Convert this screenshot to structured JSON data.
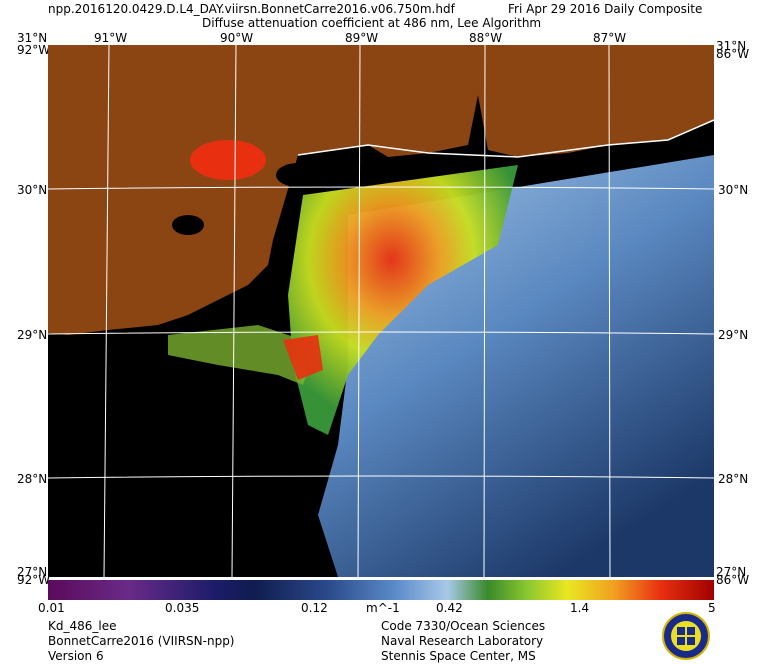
{
  "header": {
    "filename": "npp.2016120.0429.D.L4_DAY.viirsn.BonnetCarre2016.v06.750m.hdf",
    "date": "Fri Apr 29 2016 Daily Composite",
    "product": "Diffuse attenuation coefficient at 486 nm, Lee Algorithm"
  },
  "longitude_labels": [
    "91°W",
    "90°W",
    "89°W",
    "88°W",
    "87°W"
  ],
  "latitude_labels": [
    "31°N",
    "30°N",
    "29°N",
    "28°N"
  ],
  "corner_labels": {
    "top_left_lat": "31°N",
    "top_left_lon": "92°W",
    "top_right_lat": "31°N",
    "top_right_lon": "86°W",
    "bottom_left_lat": "27°N",
    "bottom_left_lon": "92°W",
    "bottom_right_lat": "27°N",
    "bottom_right_lon": "86°W"
  },
  "colorbar": {
    "ticks": [
      "0.01",
      "0.035",
      "0.12",
      "0.42",
      "1.4",
      "5"
    ],
    "unit": "m^-1"
  },
  "footer_left": [
    "Kd_486_lee",
    "BonnetCarre2016 (VIIRSN-npp)",
    "Version 6"
  ],
  "footer_right": [
    "Code 7330/Ocean Sciences",
    "Naval Research Laboratory",
    "Stennis Space Center, MS"
  ],
  "colors": {
    "land": "#8b4513",
    "nodata": "#000000",
    "grid": "#ffffff"
  }
}
